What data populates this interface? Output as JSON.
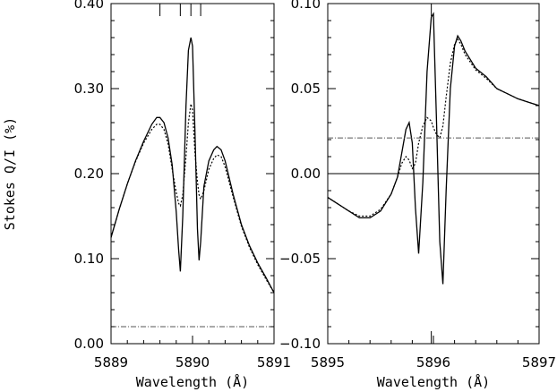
{
  "chart_data": [
    {
      "type": "line",
      "xlabel": "Wavelength (Å)",
      "ylabel": "Stokes Q/I (%)",
      "xlim": [
        5889,
        5891
      ],
      "ylim": [
        0.0,
        0.4
      ],
      "xticks": [
        "5889",
        "5890",
        "5891"
      ],
      "yticks": [
        "0.00",
        "0.10",
        "0.20",
        "0.30",
        "0.40"
      ],
      "top_tick_marks_x": [
        5889.6,
        5889.85,
        5889.98,
        5890.1
      ],
      "series": [
        {
          "style": "solid",
          "x": [
            5889.0,
            5889.1,
            5889.2,
            5889.3,
            5889.4,
            5889.5,
            5889.56,
            5889.6,
            5889.65,
            5889.7,
            5889.75,
            5889.8,
            5889.83,
            5889.85,
            5889.88,
            5889.92,
            5889.95,
            5889.98,
            5890.0,
            5890.03,
            5890.06,
            5890.08,
            5890.1,
            5890.14,
            5890.2,
            5890.26,
            5890.3,
            5890.35,
            5890.4,
            5890.5,
            5890.6,
            5890.7,
            5890.8,
            5890.9,
            5891.0
          ],
          "y": [
            0.125,
            0.158,
            0.188,
            0.215,
            0.238,
            0.258,
            0.266,
            0.266,
            0.26,
            0.242,
            0.21,
            0.155,
            0.11,
            0.085,
            0.15,
            0.28,
            0.345,
            0.36,
            0.35,
            0.25,
            0.135,
            0.098,
            0.12,
            0.185,
            0.215,
            0.228,
            0.232,
            0.228,
            0.215,
            0.175,
            0.14,
            0.115,
            0.095,
            0.078,
            0.06
          ]
        },
        {
          "style": "dotted",
          "x": [
            5889.0,
            5889.1,
            5889.2,
            5889.3,
            5889.4,
            5889.5,
            5889.56,
            5889.6,
            5889.65,
            5889.7,
            5889.75,
            5889.8,
            5889.83,
            5889.85,
            5889.88,
            5889.92,
            5889.95,
            5889.98,
            5890.0,
            5890.03,
            5890.06,
            5890.08,
            5890.1,
            5890.14,
            5890.2,
            5890.26,
            5890.3,
            5890.35,
            5890.4,
            5890.5,
            5890.6,
            5890.7,
            5890.8,
            5890.9,
            5891.0
          ],
          "y": [
            0.125,
            0.158,
            0.188,
            0.214,
            0.236,
            0.252,
            0.258,
            0.258,
            0.252,
            0.235,
            0.205,
            0.178,
            0.165,
            0.162,
            0.175,
            0.22,
            0.26,
            0.282,
            0.275,
            0.225,
            0.19,
            0.175,
            0.17,
            0.18,
            0.205,
            0.218,
            0.222,
            0.22,
            0.208,
            0.172,
            0.138,
            0.113,
            0.093,
            0.076,
            0.06
          ]
        },
        {
          "style": "dash-dot",
          "x": [
            5889.0,
            5891.0
          ],
          "y": [
            0.02,
            0.02
          ]
        }
      ]
    },
    {
      "type": "line",
      "xlabel": "Wavelength (Å)",
      "ylabel": "",
      "xlim": [
        5895,
        5897
      ],
      "ylim": [
        -0.1,
        0.1
      ],
      "xticks": [
        "5895",
        "5896",
        "5897"
      ],
      "yticks": [
        "−0.10",
        "−0.05",
        "0.00",
        "0.05",
        "0.10"
      ],
      "top_tick_marks_x": [
        5895.98
      ],
      "bottom_tick_marks_x": [
        5895.98
      ],
      "series": [
        {
          "style": "solid",
          "x": [
            5895.0,
            5895.1,
            5895.2,
            5895.3,
            5895.4,
            5895.5,
            5895.6,
            5895.66,
            5895.7,
            5895.74,
            5895.77,
            5895.8,
            5895.83,
            5895.86,
            5895.9,
            5895.94,
            5895.98,
            5896.0,
            5896.03,
            5896.06,
            5896.09,
            5896.12,
            5896.16,
            5896.2,
            5896.23,
            5896.26,
            5896.3,
            5896.4,
            5896.5,
            5896.6,
            5896.7,
            5896.8,
            5896.9,
            5897.0
          ],
          "y": [
            -0.014,
            -0.018,
            -0.022,
            -0.026,
            -0.026,
            -0.022,
            -0.012,
            -0.002,
            0.012,
            0.026,
            0.03,
            0.018,
            -0.02,
            -0.047,
            -0.005,
            0.06,
            0.092,
            0.094,
            0.03,
            -0.04,
            -0.065,
            -0.01,
            0.05,
            0.075,
            0.081,
            0.078,
            0.072,
            0.062,
            0.057,
            0.05,
            0.047,
            0.044,
            0.042,
            0.04
          ]
        },
        {
          "style": "dotted",
          "x": [
            5895.0,
            5895.1,
            5895.2,
            5895.3,
            5895.4,
            5895.5,
            5895.6,
            5895.66,
            5895.7,
            5895.74,
            5895.77,
            5895.8,
            5895.83,
            5895.86,
            5895.9,
            5895.94,
            5895.98,
            5896.0,
            5896.03,
            5896.06,
            5896.09,
            5896.12,
            5896.16,
            5896.2,
            5896.23,
            5896.26,
            5896.3,
            5896.4,
            5896.5,
            5896.6,
            5896.7,
            5896.8,
            5896.9,
            5897.0
          ],
          "y": [
            -0.014,
            -0.018,
            -0.022,
            -0.025,
            -0.025,
            -0.021,
            -0.012,
            -0.002,
            0.006,
            0.01,
            0.008,
            0.003,
            0.006,
            0.018,
            0.028,
            0.033,
            0.031,
            0.027,
            0.023,
            0.021,
            0.028,
            0.045,
            0.065,
            0.076,
            0.079,
            0.076,
            0.07,
            0.061,
            0.056,
            0.05,
            0.047,
            0.044,
            0.042,
            0.04
          ]
        },
        {
          "style": "solid-thin",
          "x": [
            5895.0,
            5897.0
          ],
          "y": [
            0.0,
            0.0
          ]
        },
        {
          "style": "dash-dot",
          "x": [
            5895.0,
            5897.0
          ],
          "y": [
            0.021,
            0.021
          ]
        }
      ]
    }
  ]
}
